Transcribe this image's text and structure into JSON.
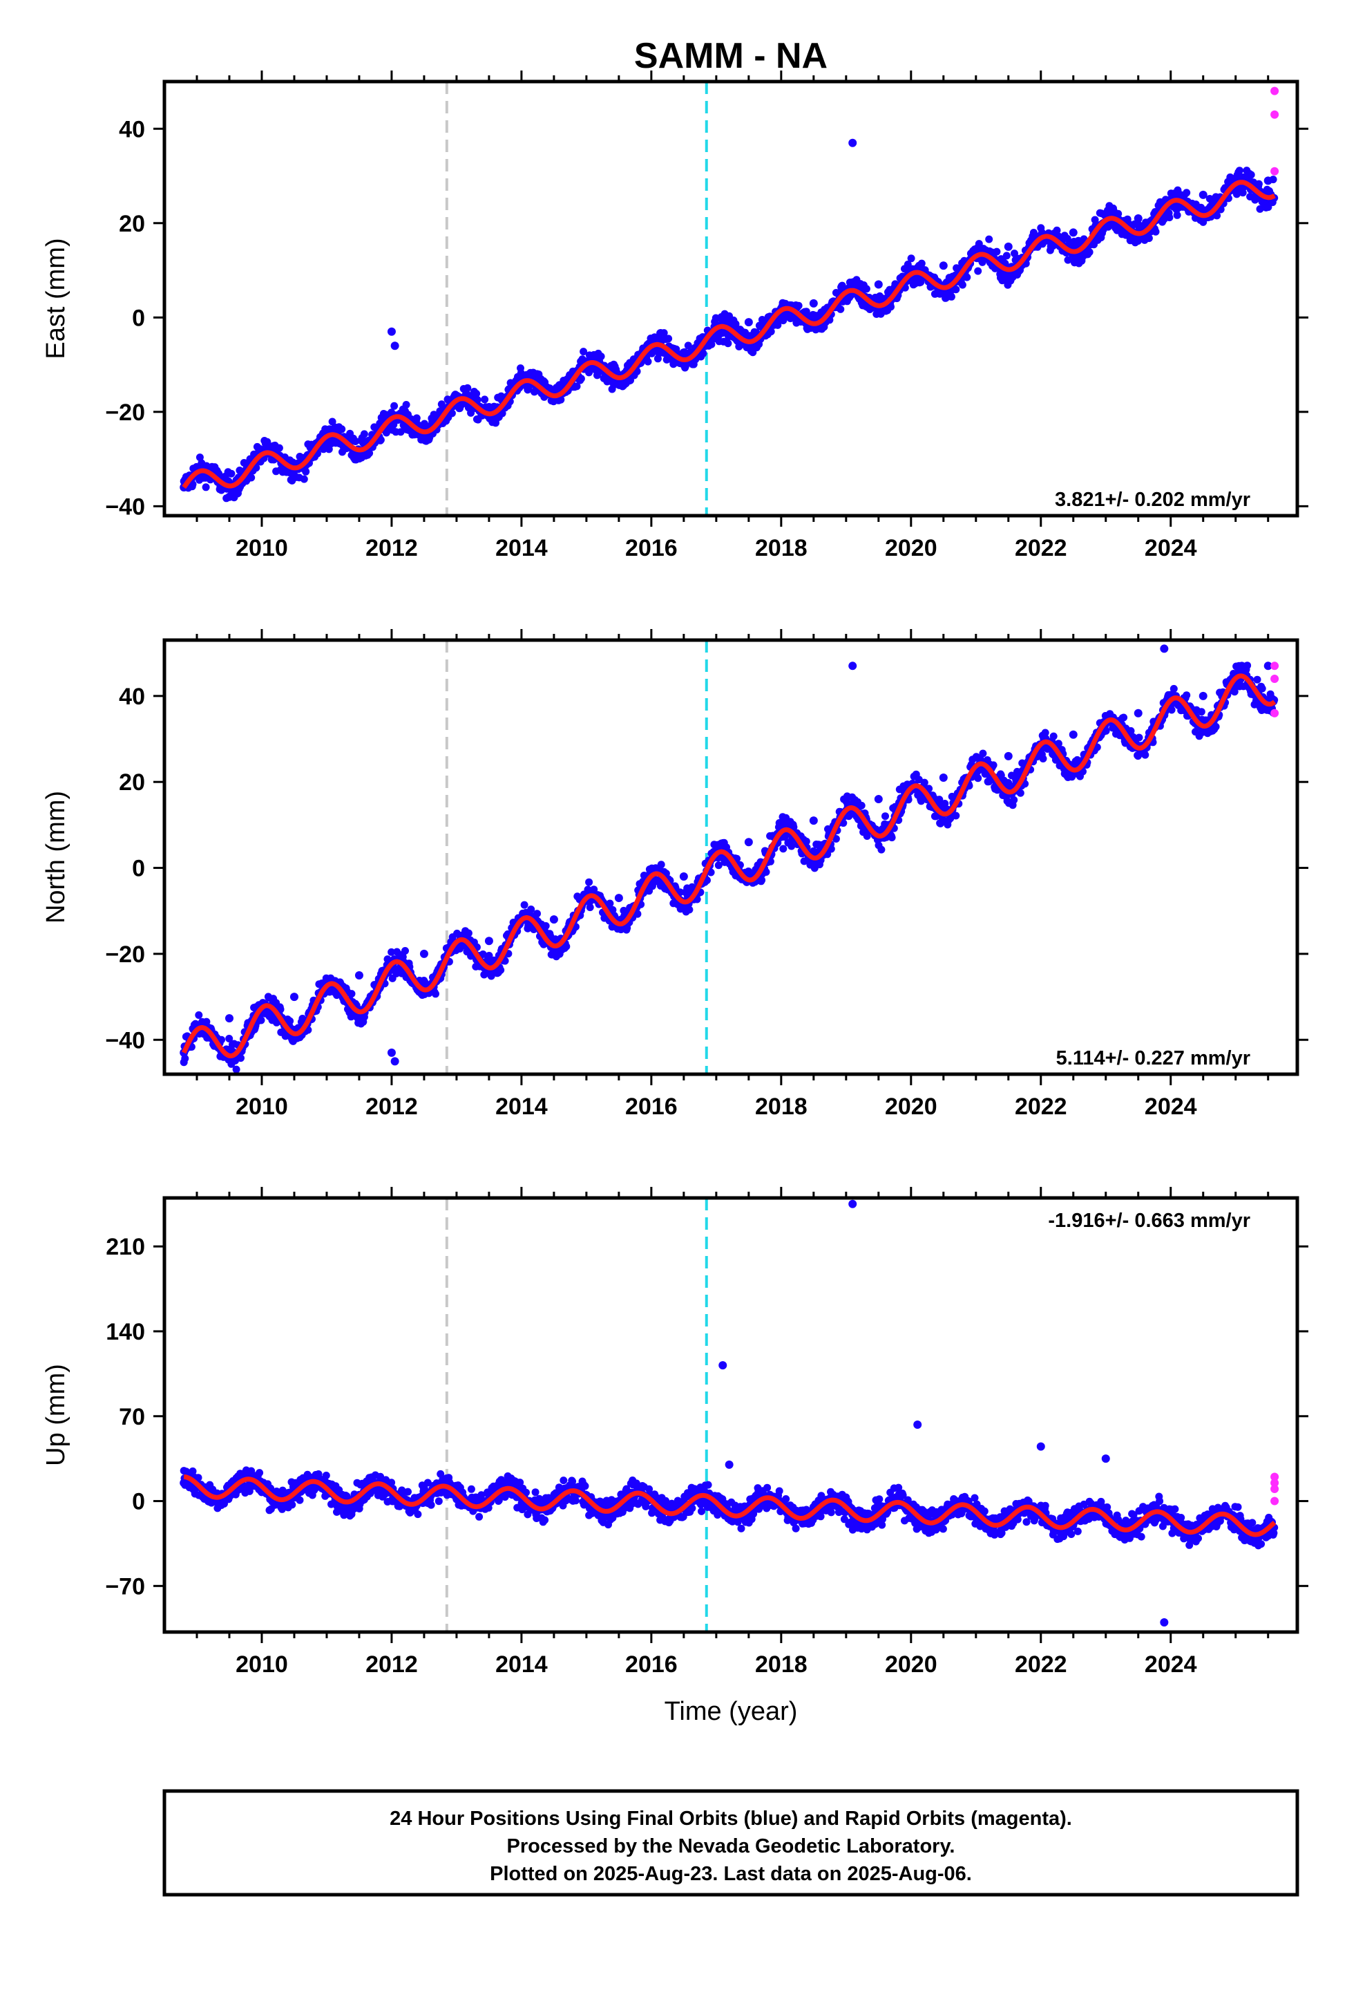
{
  "title": "SAMM - NA",
  "caption": [
    "24 Hour Positions Using Final Orbits (blue) and Rapid Orbits (magenta).",
    "Processed by the Nevada Geodetic Laboratory.",
    "Plotted on 2025-Aug-23. Last data on 2025-Aug-06."
  ],
  "colors": {
    "final_orbits": "#1a00ff",
    "rapid_orbits": "#ff2bff",
    "model_fit": "#ff1a1a",
    "equipment_change": "#c8c8c8",
    "earthquake": "#22d8e8"
  },
  "chart_data": [
    {
      "type": "scatter",
      "ylabel": "East (mm)",
      "xlabel": "",
      "xlim": [
        2008.5,
        2025.95
      ],
      "ylim": [
        -42,
        50
      ],
      "yticks": [
        -40,
        -20,
        0,
        20,
        40
      ],
      "xticks": [
        2010,
        2012,
        2014,
        2016,
        2018,
        2020,
        2022,
        2024
      ],
      "rate_label": "3.821+/- 0.202 mm/yr",
      "vlines": [
        {
          "x": 2012.85,
          "kind": "equipment_change"
        },
        {
          "x": 2016.85,
          "kind": "earthquake"
        }
      ],
      "model": {
        "start": 2008.8,
        "end": 2025.6,
        "offset_at_start": -36,
        "rate": 3.821,
        "seasonal_amplitude": 2.5,
        "seasonal_phase": 0.0
      },
      "series": [
        {
          "name": "Final Orbits",
          "x": [
            2008.8,
            2009.5,
            2010.5,
            2011.5,
            2012.0,
            2012.05,
            2012.5,
            2013.5,
            2014.5,
            2015.5,
            2016.5,
            2017.5,
            2018.5,
            2019.1,
            2019.5,
            2020.5,
            2021.5,
            2022.5,
            2023.5,
            2024.5,
            2025.5
          ],
          "y": [
            -36,
            -38,
            -32,
            -29,
            -3,
            -6,
            -24,
            -19,
            -16,
            -13,
            -10,
            -1,
            3,
            37,
            7,
            11,
            15,
            18,
            21,
            26,
            29
          ]
        },
        {
          "name": "Rapid Orbits",
          "x": [
            2025.6,
            2025.6,
            2025.6
          ],
          "y": [
            48,
            43,
            31
          ]
        }
      ]
    },
    {
      "type": "scatter",
      "ylabel": "North (mm)",
      "xlabel": "",
      "xlim": [
        2008.5,
        2025.95
      ],
      "ylim": [
        -48,
        53
      ],
      "yticks": [
        -40,
        -20,
        0,
        20,
        40
      ],
      "xticks": [
        2010,
        2012,
        2014,
        2016,
        2018,
        2020,
        2022,
        2024
      ],
      "rate_label": "5.114+/- 0.227 mm/yr",
      "vlines": [
        {
          "x": 2012.85,
          "kind": "equipment_change"
        },
        {
          "x": 2016.85,
          "kind": "earthquake"
        }
      ],
      "model": {
        "start": 2008.8,
        "end": 2025.6,
        "offset_at_start": -43,
        "rate": 5.114,
        "seasonal_amplitude": 4.5,
        "seasonal_phase": 0.0
      },
      "series": [
        {
          "name": "Final Orbits",
          "x": [
            2008.8,
            2009.5,
            2010.5,
            2011.5,
            2012.0,
            2012.05,
            2012.5,
            2013.5,
            2014.5,
            2015.5,
            2016.5,
            2017.5,
            2018.5,
            2019.1,
            2019.5,
            2020.5,
            2021.5,
            2022.5,
            2023.5,
            2023.9,
            2024.5,
            2025.5
          ],
          "y": [
            -43,
            -35,
            -30,
            -25,
            -43,
            -45,
            -20,
            -17,
            -12,
            -7,
            -2,
            6,
            11,
            47,
            16,
            21,
            26,
            31,
            36,
            51,
            40,
            47
          ]
        },
        {
          "name": "Rapid Orbits",
          "x": [
            2025.6,
            2025.6,
            2025.6
          ],
          "y": [
            47,
            44,
            36
          ]
        }
      ]
    },
    {
      "type": "scatter",
      "ylabel": "Up (mm)",
      "xlabel": "Time (year)",
      "xlim": [
        2008.5,
        2025.95
      ],
      "ylim": [
        -108,
        250
      ],
      "yticks": [
        -70,
        0,
        70,
        140,
        210
      ],
      "xticks": [
        2010,
        2012,
        2014,
        2016,
        2018,
        2020,
        2022,
        2024
      ],
      "rate_label": "-1.916+/- 0.663 mm/yr",
      "vlines": [
        {
          "x": 2012.85,
          "kind": "equipment_change"
        },
        {
          "x": 2016.85,
          "kind": "earthquake"
        }
      ],
      "model": {
        "start": 2008.8,
        "end": 2025.6,
        "offset_at_start": 12,
        "rate": -1.916,
        "seasonal_amplitude": 8,
        "seasonal_phase": 0.25
      },
      "series": [
        {
          "name": "Final Orbits",
          "x": [
            2008.8,
            2009.5,
            2010.5,
            2011.5,
            2012.5,
            2013.5,
            2014.5,
            2015.5,
            2016.5,
            2017.1,
            2017.2,
            2018.5,
            2019.1,
            2020.1,
            2021.5,
            2022.0,
            2023.0,
            2023.5,
            2023.9,
            2024.5,
            2025.5
          ],
          "y": [
            15,
            5,
            8,
            5,
            10,
            5,
            3,
            0,
            0,
            112,
            30,
            -5,
            245,
            63,
            -10,
            45,
            35,
            -20,
            -100,
            -20,
            -25
          ]
        },
        {
          "name": "Rapid Orbits",
          "x": [
            2025.6,
            2025.6,
            2025.6,
            2025.6
          ],
          "y": [
            20,
            15,
            10,
            0
          ]
        }
      ]
    }
  ]
}
